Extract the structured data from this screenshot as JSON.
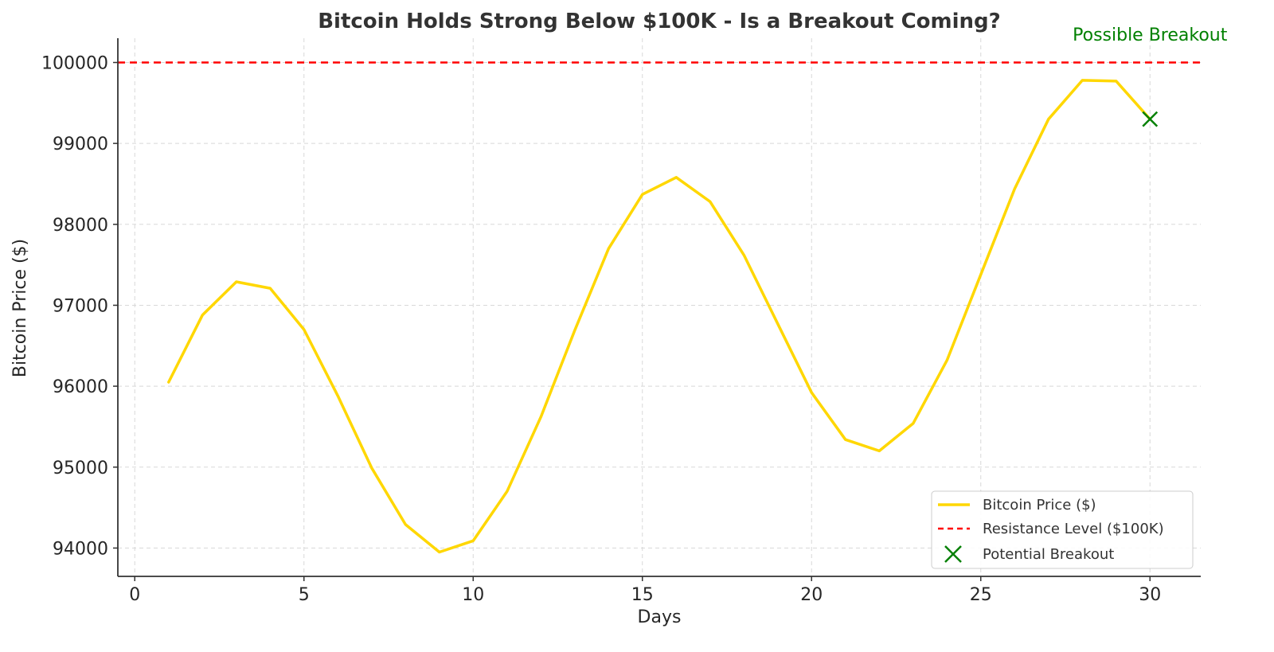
{
  "chart_data": {
    "type": "line",
    "title": "Bitcoin Holds Strong Below $100K - Is a Breakout Coming?",
    "xlabel": "Days",
    "ylabel": "Bitcoin Price ($)",
    "xlim": [
      -0.5,
      31.5
    ],
    "ylim": [
      93650,
      100300
    ],
    "x_ticks": [
      0,
      5,
      10,
      15,
      20,
      25,
      30
    ],
    "y_ticks": [
      94000,
      95000,
      96000,
      97000,
      98000,
      99000,
      100000
    ],
    "grid": true,
    "legend_position": "lower-right",
    "series": [
      {
        "name": "Bitcoin Price ($)",
        "color": "#FFD700",
        "style": "solid",
        "x": [
          1,
          2,
          3,
          4,
          5,
          6,
          7,
          8,
          9,
          10,
          11,
          12,
          13,
          14,
          15,
          16,
          17,
          18,
          19,
          20,
          21,
          22,
          23,
          24,
          25,
          26,
          27,
          28,
          29,
          30
        ],
        "y": [
          96050,
          96880,
          97290,
          97210,
          96700,
          95880,
          94990,
          94290,
          93950,
          94090,
          94700,
          95620,
          96690,
          97700,
          98370,
          98580,
          98280,
          97620,
          96770,
          95920,
          95340,
          95200,
          95540,
          96320,
          97380,
          98440,
          99300,
          99780,
          99770,
          99300
        ]
      }
    ],
    "reference_lines": [
      {
        "name": "Resistance Level ($100K)",
        "y": 100000,
        "color": "#FF0000",
        "style": "dashed"
      }
    ],
    "markers": [
      {
        "name": "Potential Breakout",
        "x": 30,
        "y": 99300,
        "color": "#008000",
        "symbol": "x"
      }
    ],
    "annotations": [
      {
        "text": "Possible Breakout",
        "x": 30,
        "y": 100350,
        "color": "#008000"
      }
    ]
  }
}
